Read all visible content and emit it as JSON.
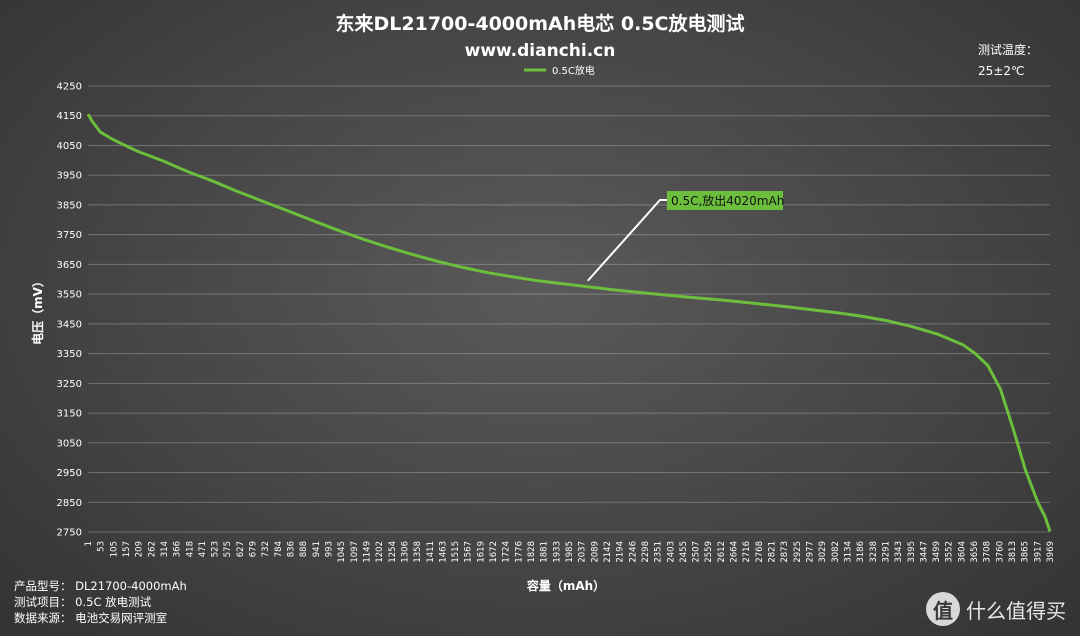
{
  "chart_data": {
    "type": "line",
    "title": "东来DL21700-4000mAh电芯 0.5C放电测试",
    "subtitle": "www.dianchi.cn",
    "xlabel": "容量（mAh）",
    "ylabel": "电压（mV）",
    "ylim": [
      2750,
      4250
    ],
    "yticks": [
      2750,
      2850,
      2950,
      3050,
      3150,
      3250,
      3350,
      3450,
      3550,
      3650,
      3750,
      3850,
      3950,
      4050,
      4150,
      4250
    ],
    "xlim": [
      1,
      4020
    ],
    "x_tick_labels": [
      "1",
      "53",
      "105",
      "157",
      "209",
      "262",
      "314",
      "366",
      "418",
      "471",
      "523",
      "575",
      "627",
      "679",
      "732",
      "784",
      "836",
      "888",
      "941",
      "993",
      "1045",
      "1097",
      "1149",
      "1202",
      "1254",
      "1306",
      "1358",
      "1411",
      "1463",
      "1515",
      "1567",
      "1619",
      "1672",
      "1724",
      "1776",
      "1828",
      "1881",
      "1933",
      "1985",
      "2037",
      "2089",
      "2142",
      "2194",
      "2246",
      "2298",
      "2351",
      "2403",
      "2455",
      "2507",
      "2559",
      "2612",
      "2664",
      "2716",
      "2768",
      "2821",
      "2873",
      "2925",
      "2977",
      "3029",
      "3082",
      "3134",
      "3186",
      "3238",
      "3291",
      "3343",
      "3395",
      "3447",
      "3499",
      "3552",
      "3604",
      "3656",
      "3708",
      "3760",
      "3813",
      "3865",
      "3917",
      "3969"
    ],
    "grid": true,
    "legend_position": "top-center",
    "series": [
      {
        "name": "0.5C放电",
        "color": "#6cbf3c",
        "x": [
          1,
          20,
          53,
          105,
          157,
          209,
          314,
          418,
          523,
          627,
          732,
          836,
          941,
          1045,
          1149,
          1254,
          1358,
          1463,
          1567,
          1672,
          1776,
          1881,
          1985,
          2089,
          2194,
          2298,
          2403,
          2507,
          2612,
          2716,
          2821,
          2925,
          3029,
          3134,
          3238,
          3343,
          3447,
          3552,
          3656,
          3708,
          3760,
          3813,
          3865,
          3917,
          3969,
          4000,
          4020
        ],
        "y": [
          4155,
          4130,
          4095,
          4070,
          4050,
          4030,
          3998,
          3962,
          3930,
          3895,
          3862,
          3830,
          3797,
          3765,
          3735,
          3708,
          3683,
          3660,
          3640,
          3622,
          3608,
          3595,
          3585,
          3575,
          3565,
          3556,
          3548,
          3540,
          3533,
          3525,
          3516,
          3507,
          3497,
          3487,
          3475,
          3460,
          3440,
          3415,
          3380,
          3350,
          3310,
          3230,
          3100,
          2960,
          2850,
          2800,
          2752
        ]
      }
    ],
    "annotations": [
      {
        "text": "0.5C,放出4020mAh",
        "x": 2089,
        "y": 3595
      }
    ]
  },
  "temperature": {
    "label": "测试温度：",
    "value": "25±2℃"
  },
  "info": {
    "product": "产品型号：  DL21700-4000mAh",
    "test": "测试项目：  0.5C 放电测试",
    "source": "数据来源：  电池交易网评测室"
  },
  "logo": {
    "badge": "值",
    "text": "什么值得买"
  }
}
